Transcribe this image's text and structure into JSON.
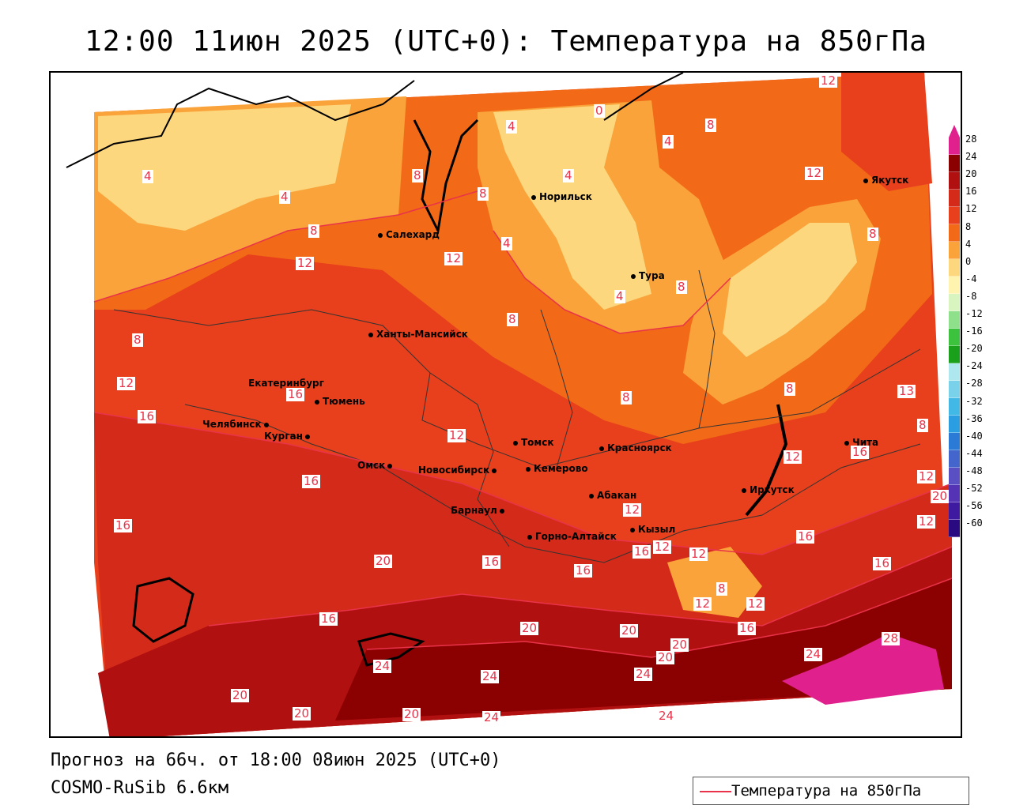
{
  "title": "12:00 11июн 2025 (UTC+0): Температура на 850гПа",
  "footer": {
    "line1": "Прогноз на 66ч. от 18:00 08июн 2025 (UTC+0)",
    "line2": "COSMO-RuSib 6.6км"
  },
  "legend": {
    "label": "Температура на 850гПа",
    "color": "#e8334a"
  },
  "colorbar": {
    "ticks": [
      "28",
      "24",
      "20",
      "16",
      "12",
      "8",
      "4",
      "0",
      "-4",
      "-8",
      "-12",
      "-16",
      "-20",
      "-24",
      "-28",
      "-32",
      "-36",
      "-40",
      "-44",
      "-48",
      "-52",
      "-56",
      "-60"
    ],
    "colors": [
      "#e0208c",
      "#8b0000",
      "#b01010",
      "#d42a1a",
      "#e8401c",
      "#f26a18",
      "#f9a33a",
      "#fcd77e",
      "#fff3b0",
      "#d8f5c0",
      "#8ee08a",
      "#3cc23c",
      "#1aa01a",
      "#aee8ee",
      "#7ad2ea",
      "#42b8e6",
      "#2a9ee0",
      "#2b7bd6",
      "#4466cc",
      "#5b4fc4",
      "#5533b5",
      "#3e1aa0",
      "#2a0a80"
    ]
  },
  "cities": [
    {
      "name": "Якутск"
    },
    {
      "name": "Норильск"
    },
    {
      "name": "Салехард"
    },
    {
      "name": "Тура"
    },
    {
      "name": "Ханты-Мансийск"
    },
    {
      "name": "Екатеринбург"
    },
    {
      "name": "Тюмень"
    },
    {
      "name": "Челябинск"
    },
    {
      "name": "Курган"
    },
    {
      "name": "Томск"
    },
    {
      "name": "Красноярск"
    },
    {
      "name": "Омск"
    },
    {
      "name": "Новосибирск"
    },
    {
      "name": "Кемерово"
    },
    {
      "name": "Чита"
    },
    {
      "name": "Иркутск"
    },
    {
      "name": "Абакан"
    },
    {
      "name": "Барнаул"
    },
    {
      "name": "Горно-Алтайск"
    },
    {
      "name": "Кызыл"
    }
  ],
  "contour_labels": [
    "12",
    "0",
    "4",
    "8",
    "4",
    "12",
    "4",
    "8",
    "4",
    "8",
    "4",
    "8",
    "4",
    "8",
    "12",
    "8",
    "12",
    "4",
    "8",
    "8",
    "12",
    "16",
    "8",
    "8",
    "13",
    "16",
    "16",
    "12",
    "16",
    "12",
    "20",
    "16",
    "12",
    "16",
    "20",
    "16",
    "16",
    "12",
    "12",
    "16",
    "16",
    "12",
    "12",
    "16",
    "8",
    "20",
    "16",
    "20",
    "20",
    "20",
    "24",
    "24",
    "24",
    "24",
    "24",
    "20",
    "20",
    "20",
    "24",
    "28",
    "12",
    "12",
    "8"
  ]
}
